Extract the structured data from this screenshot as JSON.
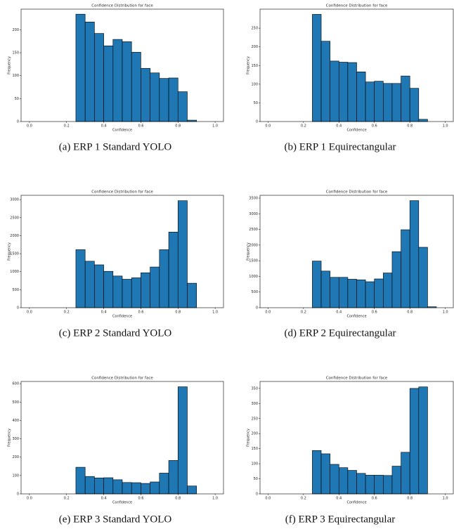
{
  "chart_data": [
    {
      "type": "histogram",
      "title": "Confidence Distribution for face",
      "x_label": "Confidence",
      "y_label": "Frequency",
      "caption": "(a) ERP 1 Standard YOLO",
      "color": "#1f77b4",
      "bins": [
        0.25,
        0.3,
        0.35,
        0.4,
        0.45,
        0.5,
        0.55,
        0.6,
        0.65,
        0.7,
        0.75,
        0.8,
        0.85,
        0.9
      ],
      "values": [
        234,
        217,
        192,
        165,
        179,
        174,
        151,
        116,
        106,
        94,
        95,
        65,
        3
      ],
      "xlim": [
        -0.045,
        1.045
      ],
      "xticks": [
        {
          "value": 0,
          "label": "0.0"
        },
        0.2,
        0.4,
        0.6,
        0.8,
        {
          "value": 1,
          "label": "1.0"
        }
      ],
      "ylim": [
        0,
        245
      ],
      "yticks": [
        0,
        50,
        100,
        150,
        200
      ]
    },
    {
      "type": "histogram",
      "title": "Confidence Distribution for face",
      "x_label": "Confidence",
      "y_label": "Frequency",
      "caption": "(b) ERP 1 Equirectangular",
      "color": "#1f77b4",
      "bins": [
        0.25,
        0.3,
        0.35,
        0.4,
        0.45,
        0.5,
        0.55,
        0.6,
        0.65,
        0.7,
        0.75,
        0.8,
        0.85,
        0.9
      ],
      "values": [
        287,
        215,
        162,
        159,
        158,
        133,
        106,
        108,
        102,
        102,
        122,
        89,
        6
      ],
      "xlim": [
        -0.045,
        1.045
      ],
      "xticks": [
        {
          "value": 0,
          "label": "0.0"
        },
        0.2,
        0.4,
        0.6,
        0.8,
        {
          "value": 1,
          "label": "1.0"
        }
      ],
      "ylim": [
        0,
        301
      ],
      "yticks": [
        0,
        50,
        100,
        150,
        200,
        250
      ]
    },
    {
      "type": "histogram",
      "title": "Confidence Distribution for face",
      "x_label": "Confidence",
      "y_label": "Frequency",
      "caption": "(c) ERP 2 Standard YOLO",
      "color": "#1f77b4",
      "bins": [
        0.25,
        0.3,
        0.35,
        0.4,
        0.45,
        0.5,
        0.55,
        0.6,
        0.65,
        0.7,
        0.75,
        0.8,
        0.85,
        0.9
      ],
      "values": [
        1610,
        1290,
        1190,
        1010,
        880,
        790,
        830,
        970,
        1130,
        1610,
        2100,
        2970,
        680
      ],
      "xlim": [
        -0.045,
        1.045
      ],
      "xticks": [
        {
          "value": 0,
          "label": "0.0"
        },
        0.2,
        0.4,
        0.6,
        0.8,
        {
          "value": 1,
          "label": "1.0"
        }
      ],
      "ylim": [
        0,
        3120
      ],
      "yticks": [
        0,
        500,
        1000,
        1500,
        2000,
        2500,
        3000
      ]
    },
    {
      "type": "histogram",
      "title": "Confidence Distribution for face",
      "x_label": "Confidence",
      "y_label": "Frequency",
      "caption": "(d) ERP 2 Equirectangular",
      "color": "#1f77b4",
      "bins": [
        0.25,
        0.3,
        0.35,
        0.4,
        0.45,
        0.5,
        0.55,
        0.6,
        0.65,
        0.7,
        0.75,
        0.8,
        0.85,
        0.9,
        0.95
      ],
      "values": [
        1490,
        1170,
        970,
        970,
        910,
        890,
        830,
        920,
        1110,
        1790,
        2490,
        3420,
        1930,
        30
      ],
      "xlim": [
        -0.045,
        1.045
      ],
      "xticks": [
        {
          "value": 0,
          "label": "0.0"
        },
        0.2,
        0.4,
        0.6,
        0.8,
        {
          "value": 1,
          "label": "1.0"
        }
      ],
      "ylim": [
        0,
        3590
      ],
      "yticks": [
        0,
        500,
        1000,
        1500,
        2000,
        2500,
        3000,
        3500
      ]
    },
    {
      "type": "histogram",
      "title": "Confidence Distribution for face",
      "x_label": "Confidence",
      "y_label": "Frequency",
      "caption": "(e) ERP 3 Standard YOLO",
      "color": "#1f77b4",
      "bins": [
        0.25,
        0.3,
        0.35,
        0.4,
        0.45,
        0.5,
        0.55,
        0.6,
        0.65,
        0.7,
        0.75,
        0.8,
        0.85,
        0.9
      ],
      "values": [
        145,
        95,
        87,
        88,
        77,
        62,
        61,
        57,
        65,
        113,
        182,
        583,
        43
      ],
      "xlim": [
        -0.045,
        1.045
      ],
      "xticks": [
        {
          "value": 0,
          "label": "0.0"
        },
        0.2,
        0.4,
        0.6,
        0.8,
        {
          "value": 1,
          "label": "1.0"
        }
      ],
      "ylim": [
        0,
        612
      ],
      "yticks": [
        0,
        100,
        200,
        300,
        400,
        500,
        600
      ]
    },
    {
      "type": "histogram",
      "title": "Confidence Distribution for face",
      "x_label": "Confidence",
      "y_label": "Frequency",
      "caption": "(f) ERP 3 Equirectangular",
      "color": "#1f77b4",
      "bins": [
        0.25,
        0.3,
        0.35,
        0.4,
        0.45,
        0.5,
        0.55,
        0.6,
        0.65,
        0.7,
        0.75,
        0.8,
        0.85,
        0.9
      ],
      "values": [
        144,
        133,
        98,
        87,
        78,
        68,
        62,
        62,
        61,
        92,
        138,
        350,
        355
      ],
      "xlim": [
        -0.045,
        1.045
      ],
      "xticks": [
        {
          "value": 0,
          "label": "0.0"
        },
        0.2,
        0.4,
        0.6,
        0.8,
        {
          "value": 1,
          "label": "1.0"
        }
      ],
      "ylim": [
        0,
        373
      ],
      "yticks": [
        0,
        50,
        100,
        150,
        200,
        250,
        300,
        350
      ]
    }
  ]
}
